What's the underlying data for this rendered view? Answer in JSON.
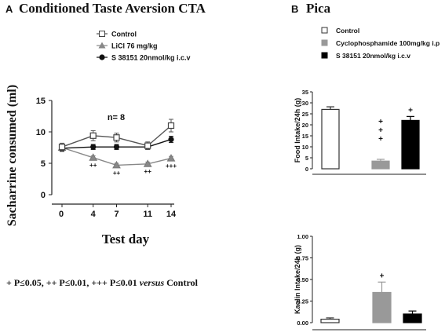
{
  "panel_a": {
    "label": "A",
    "title": "Conditioned Taste Aversion CTA",
    "n_text": "n= 8",
    "footnote_prefix": "+ P≤0.05, ++ P≤0.01, +++ P≤0.01 ",
    "footnote_italic": "versus",
    "footnote_suffix": " Control"
  },
  "panel_b": {
    "label": "B",
    "title": "Pica"
  },
  "chart_data": [
    {
      "id": "cta",
      "type": "line",
      "xlabel": "Test day",
      "ylabel": "Sacharrine consumed (ml)",
      "ylim": [
        0,
        15
      ],
      "yticks": [
        0,
        5,
        10,
        15
      ],
      "x": [
        0,
        4,
        7,
        11,
        14
      ],
      "xtick_labels": [
        "0",
        "4",
        "7",
        "11",
        "14"
      ],
      "grid": false,
      "legend_position": "top-right",
      "series": [
        {
          "name": "Control",
          "marker": "open-square",
          "color": "#555555",
          "values": [
            7.6,
            9.4,
            9.1,
            7.8,
            11.0
          ],
          "errors": [
            0.6,
            0.8,
            0.7,
            0.6,
            1.0
          ]
        },
        {
          "name": "LiCl 76 mg/kg",
          "marker": "gray-triangle",
          "color": "#888888",
          "values": [
            7.5,
            5.9,
            4.7,
            4.9,
            5.8
          ],
          "errors": [
            0.4,
            0.3,
            0.3,
            0.3,
            0.3
          ],
          "significance": [
            "",
            "++",
            "++",
            "++",
            "+++"
          ]
        },
        {
          "name": "S 38151 20nmol/kg i.c.v",
          "marker": "black-circle",
          "color": "#111111",
          "values": [
            7.4,
            7.6,
            7.6,
            7.6,
            8.8
          ],
          "errors": [
            0.5,
            0.4,
            0.4,
            0.4,
            0.5
          ]
        }
      ]
    },
    {
      "id": "food",
      "type": "bar",
      "ylabel": "Food Intake/24h (g)",
      "ylim": [
        0,
        35
      ],
      "yticks": [
        0,
        5,
        10,
        15,
        20,
        25,
        30,
        35
      ],
      "categories": [
        "Control",
        "Cyclophosphamide 100mg/kg i.p",
        "S 38151 20nmol/kg i.c.v"
      ],
      "values": [
        27,
        3.5,
        22
      ],
      "errors": [
        1.2,
        0.8,
        1.8
      ],
      "significance": [
        "",
        "+\n+\n+",
        "+"
      ],
      "colors": [
        "#ffffff",
        "#999999",
        "#000000"
      ],
      "legend_position": "top-right"
    },
    {
      "id": "kaolin",
      "type": "bar",
      "ylabel": "Kaolin Intake/24h (g)",
      "ylim": [
        0,
        1.0
      ],
      "yticks": [
        0.0,
        0.25,
        0.5,
        0.75,
        1.0
      ],
      "ytick_labels": [
        "0.00",
        "0.25",
        "0.50",
        "0.75",
        "1.00"
      ],
      "categories": [
        "Control",
        "Cyclophosphamide 100mg/kg i.p",
        "S 38151 20nmol/kg i.c.v"
      ],
      "values": [
        0.04,
        0.35,
        0.1
      ],
      "errors": [
        0.015,
        0.12,
        0.035
      ],
      "significance": [
        "",
        "+",
        ""
      ],
      "colors": [
        "#ffffff",
        "#999999",
        "#000000"
      ]
    }
  ]
}
